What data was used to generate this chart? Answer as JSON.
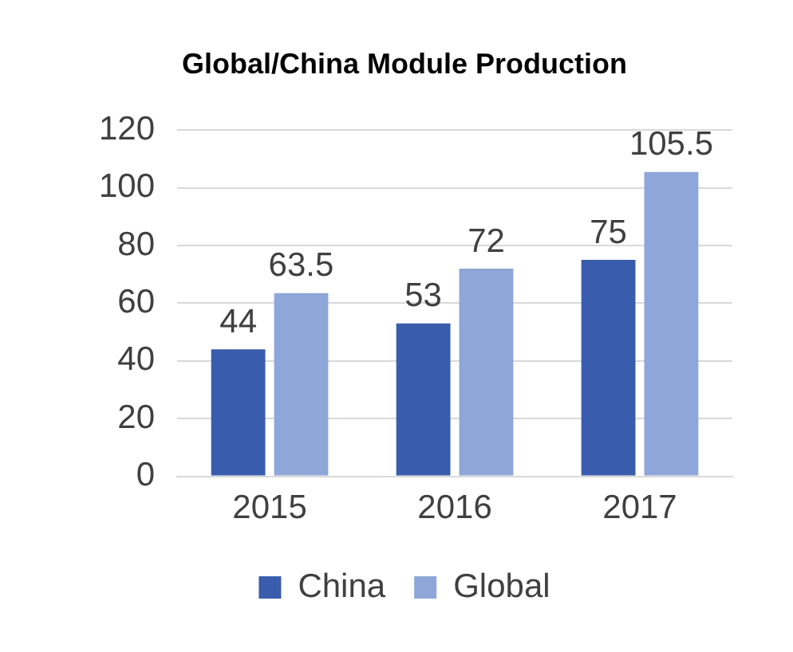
{
  "chart_data": {
    "type": "bar",
    "title": "Global/China Module Production",
    "categories": [
      "2015",
      "2016",
      "2017"
    ],
    "series": [
      {
        "name": "China",
        "color": "#3a5cac",
        "values": [
          44,
          53,
          75
        ]
      },
      {
        "name": "Global",
        "color": "#8ea6d8",
        "values": [
          63.5,
          72,
          105.5
        ]
      }
    ],
    "ylim": [
      0,
      120
    ],
    "yticks": [
      0,
      20,
      40,
      60,
      80,
      100,
      120
    ],
    "grid": "y",
    "legend": "bottom",
    "data_labels": true
  }
}
